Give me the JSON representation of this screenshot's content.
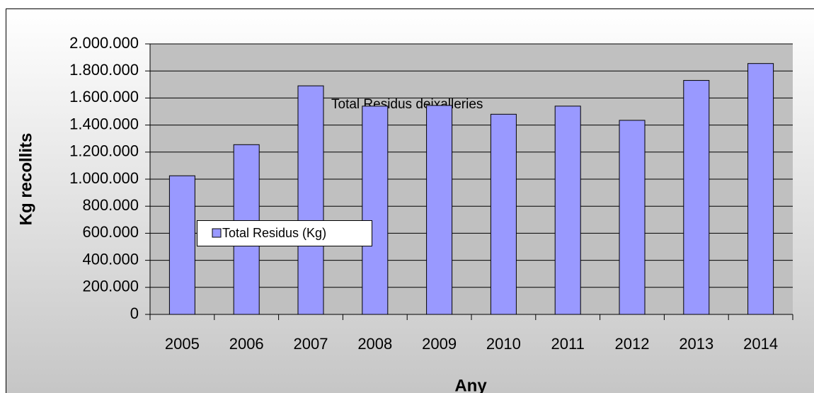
{
  "chart_data": {
    "type": "bar",
    "annotation": "Total Residus deixalleries",
    "xlabel": "Any",
    "ylabel": "Kg recollits",
    "categories": [
      "2005",
      "2006",
      "2007",
      "2008",
      "2009",
      "2010",
      "2011",
      "2012",
      "2013",
      "2014"
    ],
    "series": [
      {
        "name": "Total Residus (Kg)",
        "color": "#9999ff",
        "values": [
          1025000,
          1255000,
          1690000,
          1540000,
          1545000,
          1480000,
          1540000,
          1435000,
          1730000,
          1855000
        ]
      }
    ],
    "ylim": [
      0,
      2000000
    ],
    "yticks": [
      0,
      {
        "value": 200000,
        "label": "200.000"
      },
      {
        "value": 400000,
        "label": "400.000"
      },
      {
        "value": 600000,
        "label": "600.000"
      },
      {
        "value": 800000,
        "label": "800.000"
      },
      {
        "value": 1000000,
        "label": "1.000.000"
      },
      {
        "value": 1200000,
        "label": "1.200.000"
      },
      {
        "value": 1400000,
        "label": "1.400.000"
      },
      {
        "value": 1600000,
        "label": "1.600.000"
      },
      {
        "value": 1800000,
        "label": "1.800.000"
      },
      {
        "value": 2000000,
        "label": "2.000.000"
      }
    ],
    "grid": true,
    "legend": true
  }
}
